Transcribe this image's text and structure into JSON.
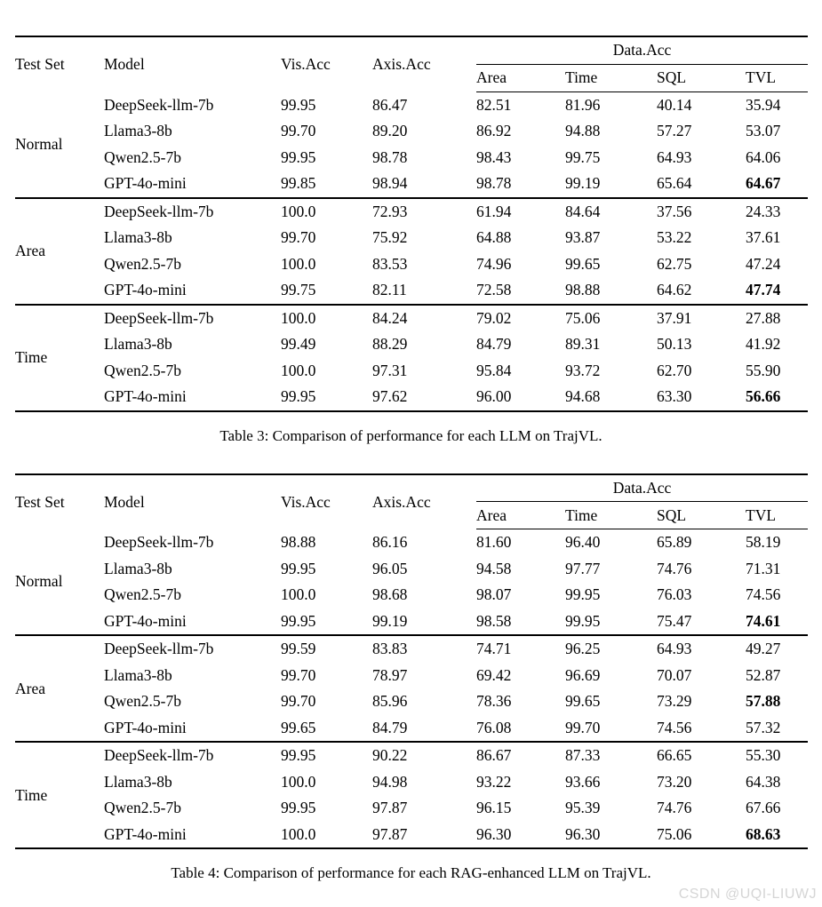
{
  "header": {
    "test_set": "Test Set",
    "model": "Model",
    "vis_acc": "Vis.Acc",
    "axis_acc": "Axis.Acc",
    "data_acc": "Data.Acc",
    "sub_columns": [
      "Area",
      "Time",
      "SQL",
      "TVL"
    ]
  },
  "tables": [
    {
      "caption": "Table 3: Comparison of performance for each LLM on TrajVL.",
      "groups": [
        {
          "test_set": "Normal",
          "rows": [
            {
              "model": "DeepSeek-llm-7b",
              "vis_acc": "99.95",
              "axis_acc": "86.47",
              "area": "82.51",
              "time": "81.96",
              "sql": "40.14",
              "tvl": "35.94",
              "tvl_bold": false
            },
            {
              "model": "Llama3-8b",
              "vis_acc": "99.70",
              "axis_acc": "89.20",
              "area": "86.92",
              "time": "94.88",
              "sql": "57.27",
              "tvl": "53.07",
              "tvl_bold": false
            },
            {
              "model": "Qwen2.5-7b",
              "vis_acc": "99.95",
              "axis_acc": "98.78",
              "area": "98.43",
              "time": "99.75",
              "sql": "64.93",
              "tvl": "64.06",
              "tvl_bold": false
            },
            {
              "model": "GPT-4o-mini",
              "vis_acc": "99.85",
              "axis_acc": "98.94",
              "area": "98.78",
              "time": "99.19",
              "sql": "65.64",
              "tvl": "64.67",
              "tvl_bold": true
            }
          ]
        },
        {
          "test_set": "Area",
          "rows": [
            {
              "model": "DeepSeek-llm-7b",
              "vis_acc": "100.0",
              "axis_acc": "72.93",
              "area": "61.94",
              "time": "84.64",
              "sql": "37.56",
              "tvl": "24.33",
              "tvl_bold": false
            },
            {
              "model": "Llama3-8b",
              "vis_acc": "99.70",
              "axis_acc": "75.92",
              "area": "64.88",
              "time": "93.87",
              "sql": "53.22",
              "tvl": "37.61",
              "tvl_bold": false
            },
            {
              "model": "Qwen2.5-7b",
              "vis_acc": "100.0",
              "axis_acc": "83.53",
              "area": "74.96",
              "time": "99.65",
              "sql": "62.75",
              "tvl": "47.24",
              "tvl_bold": false
            },
            {
              "model": "GPT-4o-mini",
              "vis_acc": "99.75",
              "axis_acc": "82.11",
              "area": "72.58",
              "time": "98.88",
              "sql": "64.62",
              "tvl": "47.74",
              "tvl_bold": true
            }
          ]
        },
        {
          "test_set": "Time",
          "rows": [
            {
              "model": "DeepSeek-llm-7b",
              "vis_acc": "100.0",
              "axis_acc": "84.24",
              "area": "79.02",
              "time": "75.06",
              "sql": "37.91",
              "tvl": "27.88",
              "tvl_bold": false
            },
            {
              "model": "Llama3-8b",
              "vis_acc": "99.49",
              "axis_acc": "88.29",
              "area": "84.79",
              "time": "89.31",
              "sql": "50.13",
              "tvl": "41.92",
              "tvl_bold": false
            },
            {
              "model": "Qwen2.5-7b",
              "vis_acc": "100.0",
              "axis_acc": "97.31",
              "area": "95.84",
              "time": "93.72",
              "sql": "62.70",
              "tvl": "55.90",
              "tvl_bold": false
            },
            {
              "model": "GPT-4o-mini",
              "vis_acc": "99.95",
              "axis_acc": "97.62",
              "area": "96.00",
              "time": "94.68",
              "sql": "63.30",
              "tvl": "56.66",
              "tvl_bold": true
            }
          ]
        }
      ]
    },
    {
      "caption": "Table 4: Comparison of performance for each RAG-enhanced LLM on TrajVL.",
      "groups": [
        {
          "test_set": "Normal",
          "rows": [
            {
              "model": "DeepSeek-llm-7b",
              "vis_acc": "98.88",
              "axis_acc": "86.16",
              "area": "81.60",
              "time": "96.40",
              "sql": "65.89",
              "tvl": "58.19",
              "tvl_bold": false
            },
            {
              "model": "Llama3-8b",
              "vis_acc": "99.95",
              "axis_acc": "96.05",
              "area": "94.58",
              "time": "97.77",
              "sql": "74.76",
              "tvl": "71.31",
              "tvl_bold": false
            },
            {
              "model": "Qwen2.5-7b",
              "vis_acc": "100.0",
              "axis_acc": "98.68",
              "area": "98.07",
              "time": "99.95",
              "sql": "76.03",
              "tvl": "74.56",
              "tvl_bold": false
            },
            {
              "model": "GPT-4o-mini",
              "vis_acc": "99.95",
              "axis_acc": "99.19",
              "area": "98.58",
              "time": "99.95",
              "sql": "75.47",
              "tvl": "74.61",
              "tvl_bold": true
            }
          ]
        },
        {
          "test_set": "Area",
          "rows": [
            {
              "model": "DeepSeek-llm-7b",
              "vis_acc": "99.59",
              "axis_acc": "83.83",
              "area": "74.71",
              "time": "96.25",
              "sql": "64.93",
              "tvl": "49.27",
              "tvl_bold": false
            },
            {
              "model": "Llama3-8b",
              "vis_acc": "99.70",
              "axis_acc": "78.97",
              "area": "69.42",
              "time": "96.69",
              "sql": "70.07",
              "tvl": "52.87",
              "tvl_bold": false
            },
            {
              "model": "Qwen2.5-7b",
              "vis_acc": "99.70",
              "axis_acc": "85.96",
              "area": "78.36",
              "time": "99.65",
              "sql": "73.29",
              "tvl": "57.88",
              "tvl_bold": true
            },
            {
              "model": "GPT-4o-mini",
              "vis_acc": "99.65",
              "axis_acc": "84.79",
              "area": "76.08",
              "time": "99.70",
              "sql": "74.56",
              "tvl": "57.32",
              "tvl_bold": false
            }
          ]
        },
        {
          "test_set": "Time",
          "rows": [
            {
              "model": "DeepSeek-llm-7b",
              "vis_acc": "99.95",
              "axis_acc": "90.22",
              "area": "86.67",
              "time": "87.33",
              "sql": "66.65",
              "tvl": "55.30",
              "tvl_bold": false
            },
            {
              "model": "Llama3-8b",
              "vis_acc": "100.0",
              "axis_acc": "94.98",
              "area": "93.22",
              "time": "93.66",
              "sql": "73.20",
              "tvl": "64.38",
              "tvl_bold": false
            },
            {
              "model": "Qwen2.5-7b",
              "vis_acc": "99.95",
              "axis_acc": "97.87",
              "area": "96.15",
              "time": "95.39",
              "sql": "74.76",
              "tvl": "67.66",
              "tvl_bold": false
            },
            {
              "model": "GPT-4o-mini",
              "vis_acc": "100.0",
              "axis_acc": "97.87",
              "area": "96.30",
              "time": "96.30",
              "sql": "75.06",
              "tvl": "68.63",
              "tvl_bold": true
            }
          ]
        }
      ]
    }
  ],
  "watermark": {
    "text": "CSDN @UQI-LIUWJ",
    "color": "#d5d5d5"
  }
}
